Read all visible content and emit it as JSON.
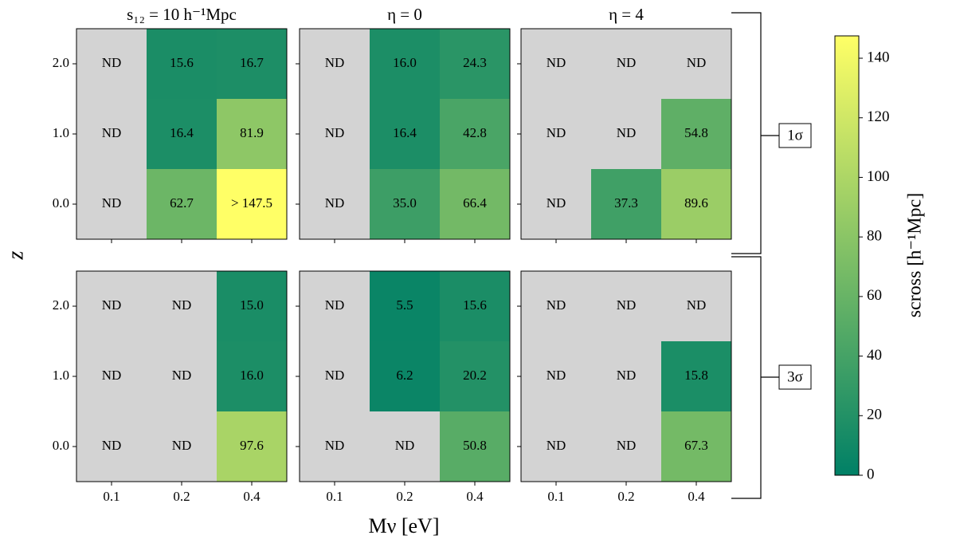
{
  "chart_data": {
    "type": "heatmap",
    "column_titles": [
      "s₁₂ = 10 h⁻¹Mpc",
      "η = 0",
      "η = 4"
    ],
    "row_labels": [
      "1σ",
      "3σ"
    ],
    "x_categories": [
      "0.1",
      "0.2",
      "0.4"
    ],
    "y_categories": [
      "2.0",
      "1.0",
      "0.0"
    ],
    "xlabel": "Mν [eV]",
    "ylabel": "z",
    "colormap": [
      "#008066",
      "#ffff66"
    ],
    "missing_color": "#d3d3d3",
    "colorbar": {
      "label": "scross [h⁻¹Mpc]",
      "ylim": [
        0,
        147.5
      ],
      "yticks": [
        0,
        20,
        40,
        60,
        80,
        100,
        120,
        140
      ]
    },
    "panels": [
      {
        "values": [
          [
            null,
            15.6,
            16.7
          ],
          [
            null,
            16.4,
            81.9
          ],
          [
            null,
            62.7,
            147.5
          ]
        ],
        "value_labels": [
          [
            "ND",
            "15.6",
            "16.7"
          ],
          [
            "ND",
            "16.4",
            "81.9"
          ],
          [
            "ND",
            "62.7",
            "> 147.5"
          ]
        ]
      },
      {
        "values": [
          [
            null,
            16.0,
            24.3
          ],
          [
            null,
            16.4,
            42.8
          ],
          [
            null,
            35.0,
            66.4
          ]
        ],
        "value_labels": [
          [
            "ND",
            "16.0",
            "24.3"
          ],
          [
            "ND",
            "16.4",
            "42.8"
          ],
          [
            "ND",
            "35.0",
            "66.4"
          ]
        ]
      },
      {
        "values": [
          [
            null,
            null,
            null
          ],
          [
            null,
            null,
            54.8
          ],
          [
            null,
            37.3,
            89.6
          ]
        ],
        "value_labels": [
          [
            "ND",
            "ND",
            "ND"
          ],
          [
            "ND",
            "ND",
            "54.8"
          ],
          [
            "ND",
            "37.3",
            "89.6"
          ]
        ]
      },
      {
        "values": [
          [
            null,
            null,
            15.0
          ],
          [
            null,
            null,
            16.0
          ],
          [
            null,
            null,
            97.6
          ]
        ],
        "value_labels": [
          [
            "ND",
            "ND",
            "15.0"
          ],
          [
            "ND",
            "ND",
            "16.0"
          ],
          [
            "ND",
            "ND",
            "97.6"
          ]
        ]
      },
      {
        "values": [
          [
            null,
            5.5,
            15.6
          ],
          [
            null,
            6.2,
            20.2
          ],
          [
            null,
            null,
            50.8
          ]
        ],
        "value_labels": [
          [
            "ND",
            "5.5",
            "15.6"
          ],
          [
            "ND",
            "6.2",
            "20.2"
          ],
          [
            "ND",
            "ND",
            "50.8"
          ]
        ]
      },
      {
        "values": [
          [
            null,
            null,
            null
          ],
          [
            null,
            null,
            15.8
          ],
          [
            null,
            null,
            67.3
          ]
        ],
        "value_labels": [
          [
            "ND",
            "ND",
            "ND"
          ],
          [
            "ND",
            "ND",
            "15.8"
          ],
          [
            "ND",
            "ND",
            "67.3"
          ]
        ]
      }
    ]
  }
}
